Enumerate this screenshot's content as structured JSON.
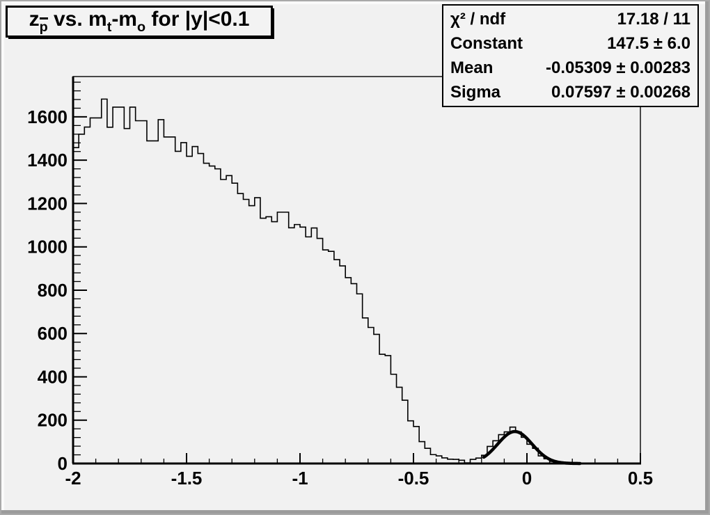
{
  "title": {
    "plain": "z_p vs. m_t-m_o for |y|<0.1",
    "segments": [
      {
        "text": "z"
      },
      {
        "sub": "p",
        "overline": true
      },
      {
        "text": " vs. m"
      },
      {
        "sub": "t"
      },
      {
        "text": "-m"
      },
      {
        "sub": "o"
      },
      {
        "text": " for |y|<0.1"
      }
    ]
  },
  "stats": {
    "rows": [
      {
        "label": "χ² / ndf",
        "value": "17.18 / 11"
      },
      {
        "label": "Constant",
        "value": "147.5 ± 6.0"
      },
      {
        "label": "Mean",
        "value": "-0.05309 ± 0.00283"
      },
      {
        "label": "Sigma",
        "value": "0.07597 ± 0.00268"
      }
    ]
  },
  "chart_data": {
    "type": "bar",
    "subtype": "root-histogram-step",
    "title": "z_p vs. m_t-m_o for |y|<0.1",
    "xlabel": "",
    "ylabel": "",
    "xlim": [
      -2.0,
      0.5
    ],
    "ylim": [
      0,
      1786
    ],
    "x_start": -2.0,
    "bin_width": 0.025,
    "n_bins": 100,
    "bins": [
      1458,
      1520,
      1553,
      1595,
      1595,
      1682,
      1552,
      1645,
      1645,
      1546,
      1645,
      1582,
      1582,
      1489,
      1489,
      1587,
      1507,
      1507,
      1441,
      1481,
      1418,
      1463,
      1431,
      1386,
      1373,
      1360,
      1311,
      1329,
      1294,
      1246,
      1219,
      1190,
      1227,
      1132,
      1139,
      1116,
      1160,
      1160,
      1088,
      1103,
      1091,
      1046,
      1087,
      1039,
      986,
      979,
      941,
      912,
      858,
      830,
      783,
      672,
      628,
      596,
      504,
      498,
      412,
      352,
      292,
      197,
      171,
      101,
      70,
      41,
      35,
      26,
      20,
      19,
      15,
      3,
      19,
      25,
      38,
      79,
      105,
      133,
      146,
      168,
      146,
      121,
      89,
      70,
      35,
      22,
      10,
      6,
      3,
      2,
      1,
      1,
      0,
      0,
      0,
      0,
      0,
      0,
      0,
      0,
      0,
      0
    ],
    "x_major_ticks": [
      -2,
      -1.5,
      -1,
      -0.5,
      0,
      0.5
    ],
    "x_tick_labels": [
      "-2",
      "-1.5",
      "-1",
      "-0.5",
      "0",
      "0.5"
    ],
    "x_minor_step": 0.1,
    "y_major_ticks": [
      0,
      200,
      400,
      600,
      800,
      1000,
      1200,
      1400,
      1600
    ],
    "y_tick_labels": [
      "0",
      "200",
      "400",
      "600",
      "800",
      "1000",
      "1200",
      "1400",
      "1600"
    ],
    "y_minor_step": 40,
    "grid": false,
    "legend": "none",
    "fit": {
      "type": "gaussian",
      "constant": 147.5,
      "mean": -0.05309,
      "sigma": 0.07597,
      "draw_range": [
        -0.19,
        0.235
      ]
    },
    "colors": {
      "histogram_line": "#000000",
      "fit_line": "#000000",
      "frame_line": "#000000",
      "background": "#f1f1f1",
      "box_background": "#f3f3f3"
    }
  }
}
